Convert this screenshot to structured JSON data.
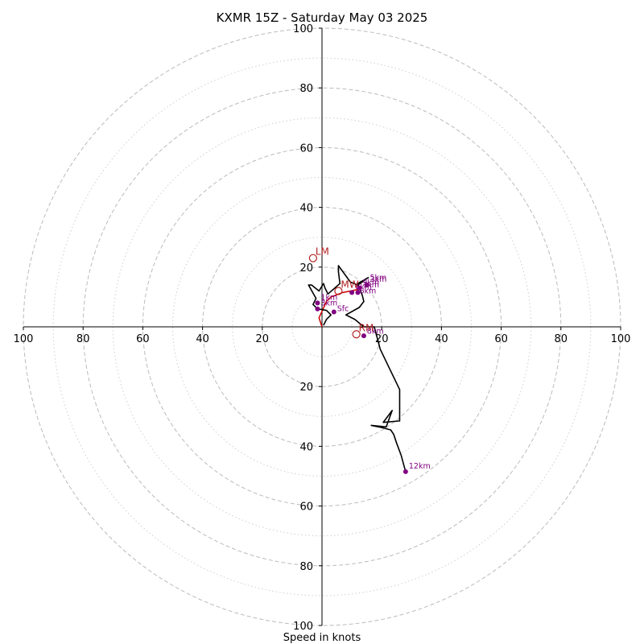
{
  "chart_data": {
    "type": "line",
    "title": "KXMR 15Z - Saturday May 03 2025",
    "xlabel": "Speed in knots",
    "xlim": [
      -100,
      100
    ],
    "ylim": [
      -100,
      100
    ],
    "grid": true,
    "rings_major": [
      20,
      40,
      60,
      80,
      100
    ],
    "rings_minor": [
      10,
      30,
      50,
      70,
      90
    ],
    "x_ticks": [
      {
        "value": -100,
        "label": "100"
      },
      {
        "value": -80,
        "label": "80"
      },
      {
        "value": -60,
        "label": "60"
      },
      {
        "value": -40,
        "label": "40"
      },
      {
        "value": -20,
        "label": "20"
      },
      {
        "value": 20,
        "label": "20"
      },
      {
        "value": 40,
        "label": "40"
      },
      {
        "value": 60,
        "label": "60"
      },
      {
        "value": 80,
        "label": "80"
      },
      {
        "value": 100,
        "label": "100"
      }
    ],
    "y_ticks": [
      {
        "value": 100,
        "label": "100"
      },
      {
        "value": 80,
        "label": "80"
      },
      {
        "value": 60,
        "label": "60"
      },
      {
        "value": 40,
        "label": "40"
      },
      {
        "value": 20,
        "label": "20"
      },
      {
        "value": -20,
        "label": "20"
      },
      {
        "value": -40,
        "label": "40"
      },
      {
        "value": -60,
        "label": "60"
      },
      {
        "value": -80,
        "label": "80"
      },
      {
        "value": -100,
        "label": "100"
      }
    ],
    "hodograph": {
      "color": "#000000",
      "points": [
        [
          0.5,
          0.5
        ],
        [
          1.5,
          2.5
        ],
        [
          3.0,
          4.0
        ],
        [
          1.5,
          5.5
        ],
        [
          -1.5,
          6.0
        ],
        [
          -3.0,
          7.5
        ],
        [
          -2.0,
          9.5
        ],
        [
          -4.5,
          14.0
        ],
        [
          -3.5,
          14.0
        ],
        [
          -1.0,
          12.0
        ],
        [
          0.5,
          14.5
        ],
        [
          1.0,
          13.0
        ],
        [
          2.0,
          11.0
        ],
        [
          6.0,
          14.5
        ],
        [
          5.5,
          18.5
        ],
        [
          5.5,
          20.5
        ],
        [
          9.5,
          15.0
        ],
        [
          12.0,
          14.0
        ],
        [
          15.5,
          16.5
        ],
        [
          12.0,
          14.5
        ],
        [
          13.5,
          10.5
        ],
        [
          14.0,
          8.5
        ],
        [
          12.5,
          6.5
        ],
        [
          8.0,
          4.0
        ],
        [
          11.0,
          2.5
        ],
        [
          14.0,
          0.0
        ],
        [
          17.5,
          0.0
        ],
        [
          19.5,
          -7.5
        ],
        [
          26.0,
          -21.0
        ],
        [
          26.0,
          -31.5
        ],
        [
          20.5,
          -32.0
        ],
        [
          23.5,
          -28.0
        ],
        [
          21.5,
          -33.5
        ],
        [
          16.5,
          -33.0
        ],
        [
          19.0,
          -33.5
        ],
        [
          23.0,
          -34.5
        ],
        [
          24.0,
          -36.0
        ],
        [
          25.0,
          -39.0
        ],
        [
          26.5,
          -43.0
        ],
        [
          28.0,
          -48.5
        ]
      ]
    },
    "shear_vector": {
      "color": "#cc0000",
      "points": [
        [
          0,
          0
        ],
        [
          -1.0,
          3.0
        ],
        [
          1.5,
          8.5
        ],
        [
          3.0,
          10.0
        ],
        [
          7.0,
          11.5
        ],
        [
          12.0,
          12.5
        ]
      ]
    },
    "height_markers": [
      {
        "label": "1km",
        "x": -1.5,
        "y": 8.0
      },
      {
        "label": "3km",
        "x": -1.5,
        "y": 6.0
      },
      {
        "label": "6km",
        "x": 10.0,
        "y": 11.5
      },
      {
        "label": "9km",
        "x": 12.5,
        "y": 13.0
      },
      {
        "label": "3km",
        "x": 15.0,
        "y": 14.0
      },
      {
        "label": "12km",
        "x": 28.0,
        "y": -48.5
      }
    ],
    "height_markers_plain": [
      {
        "x": 12.0,
        "y": 11.5
      },
      {
        "x": 4.0,
        "y": 5.0
      },
      {
        "x": 14.0,
        "y": -3.0
      }
    ],
    "storm_motion": [
      {
        "label": "LM",
        "x": -3.0,
        "y": 23.0
      },
      {
        "label": "MW",
        "x": 5.5,
        "y": 12.0
      },
      {
        "label": "RM",
        "x": 11.5,
        "y": -2.5
      }
    ],
    "minor_labels": [
      {
        "label": "5km",
        "x": 15.5,
        "y": 16.5
      },
      {
        "label": "1km",
        "x": 13.0,
        "y": 14.0
      },
      {
        "label": "6km",
        "x": 12.0,
        "y": 12.0
      },
      {
        "label": "Sfc",
        "x": 4.5,
        "y": 6.0
      },
      {
        "label": "8km",
        "x": 14.5,
        "y": -1.5
      }
    ],
    "colors": {
      "hodograph": "#000000",
      "marker": "#800080",
      "storm_motion": "#b22222",
      "grid": "#bbbbbb"
    }
  }
}
